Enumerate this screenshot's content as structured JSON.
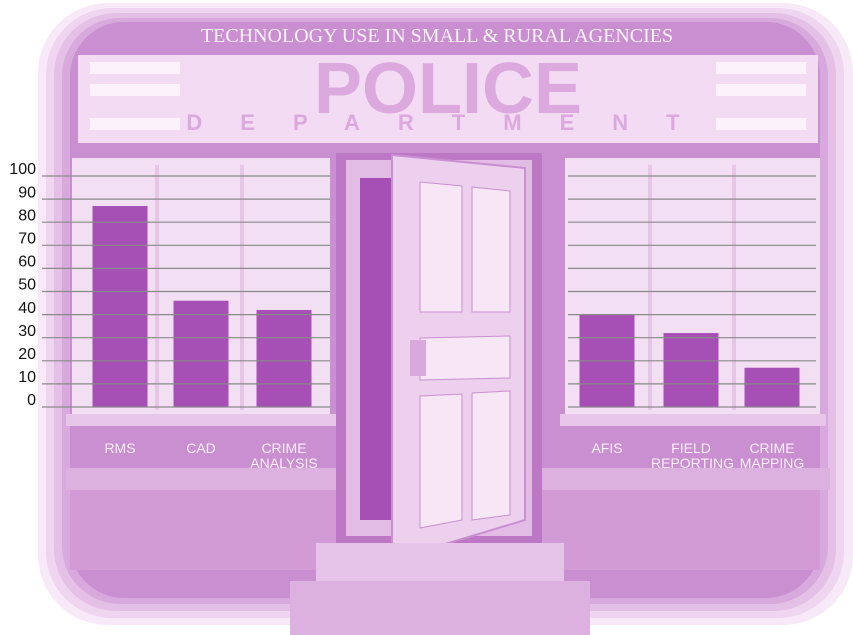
{
  "chart_data": {
    "type": "bar",
    "title": "TECHNOLOGY USE IN SMALL & RURAL AGENCIES",
    "annotations": [
      "POLICE",
      "DEPARTMENT"
    ],
    "categories": [
      "RMS",
      "CAD",
      "CRIME ANALYSIS",
      "AFIS",
      "FIELD REPORTING",
      "CRIME MAPPING"
    ],
    "values": [
      87,
      46,
      42,
      40,
      32,
      17
    ],
    "color": "#a64fb5",
    "ylim": [
      0,
      100
    ],
    "yticks": [
      0,
      10,
      20,
      30,
      40,
      50,
      60,
      70,
      80,
      90,
      100
    ],
    "grid": true
  }
}
